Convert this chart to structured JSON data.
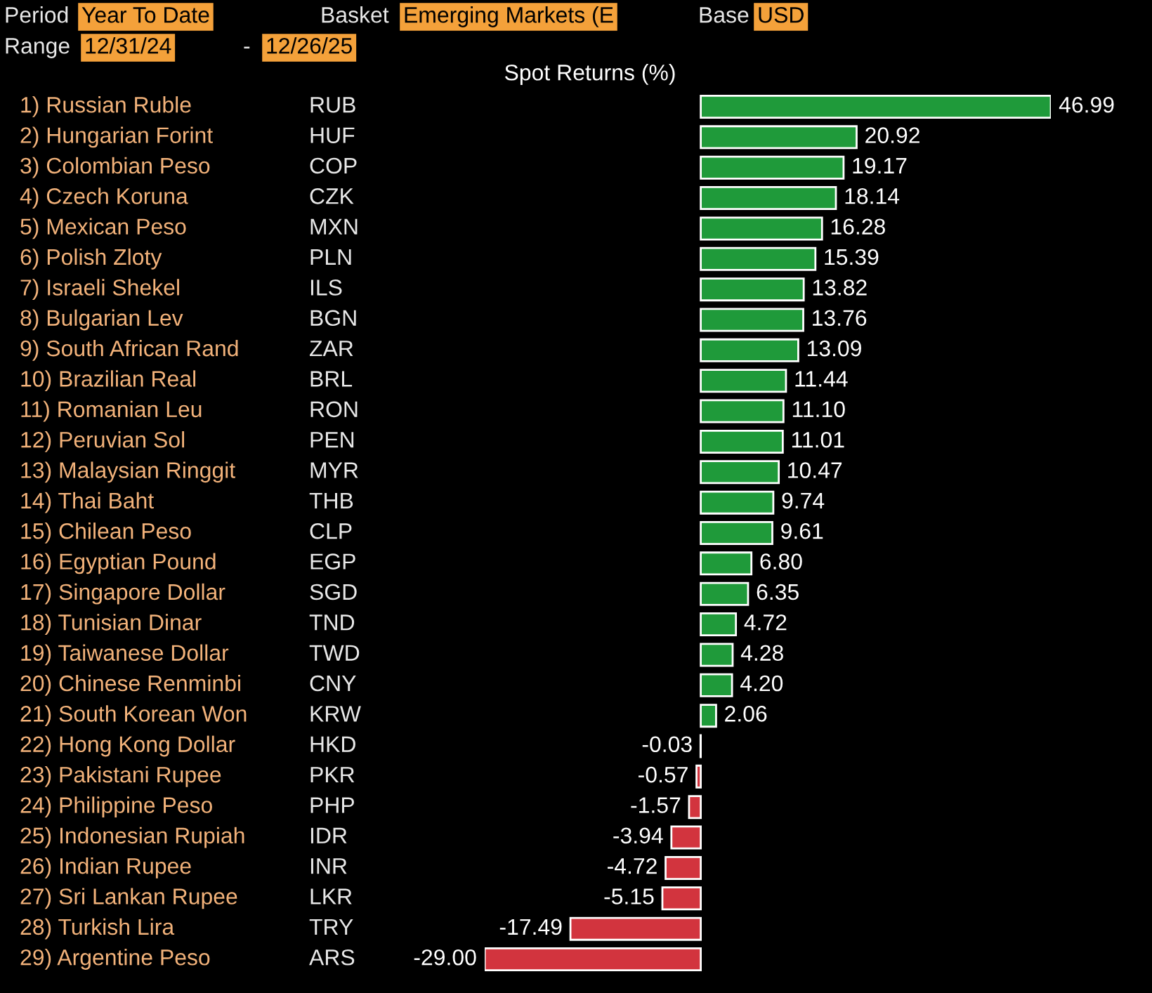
{
  "chart_data": {
    "type": "bar",
    "orientation": "horizontal",
    "title": "Spot Returns (%)",
    "annotations": [
      "Period",
      "Year To Date",
      "Basket",
      "Emerging Markets (E",
      "Base",
      "USD",
      "Range",
      "12/31/24",
      "-",
      "12/26/25"
    ],
    "categories": [
      "1) Russian Ruble",
      "2) Hungarian Forint",
      "3) Colombian Peso",
      "4) Czech Koruna",
      "5) Mexican Peso",
      "6) Polish Zloty",
      "7) Israeli Shekel",
      "8) Bulgarian Lev",
      "9) South African Rand",
      "10) Brazilian Real",
      "11) Romanian Leu",
      "12) Peruvian Sol",
      "13) Malaysian Ringgit",
      "14) Thai Baht",
      "15) Chilean Peso",
      "16) Egyptian Pound",
      "17) Singapore Dollar",
      "18) Tunisian Dinar",
      "19) Taiwanese Dollar",
      "20) Chinese Renminbi",
      "21) South Korean Won",
      "22) Hong Kong Dollar",
      "23) Pakistani Rupee",
      "24) Philippine Peso",
      "25) Indonesian Rupiah",
      "26) Indian Rupee",
      "27) Sri Lankan Rupee",
      "28) Turkish Lira",
      "29) Argentine Peso"
    ],
    "y2_categories": [
      "RUB",
      "HUF",
      "COP",
      "CZK",
      "MXN",
      "PLN",
      "ILS",
      "BGN",
      "ZAR",
      "BRL",
      "RON",
      "PEN",
      "MYR",
      "THB",
      "CLP",
      "EGP",
      "SGD",
      "TND",
      "TWD",
      "CNY",
      "KRW",
      "HKD",
      "PKR",
      "PHP",
      "IDR",
      "INR",
      "LKR",
      "TRY",
      "ARS"
    ],
    "values": [
      46.99,
      20.92,
      19.17,
      18.14,
      16.28,
      15.39,
      13.82,
      13.76,
      13.09,
      11.44,
      11.1,
      11.01,
      10.47,
      9.74,
      9.61,
      6.8,
      6.35,
      4.72,
      4.28,
      4.2,
      2.06,
      -0.03,
      -0.57,
      -1.57,
      -3.94,
      -4.72,
      -5.15,
      -17.49,
      -29.0
    ],
    "value_labels": [
      "46.99",
      "20.92",
      "19.17",
      "18.14",
      "16.28",
      "15.39",
      "13.82",
      "13.76",
      "13.09",
      "11.44",
      "11.10",
      "11.01",
      "10.47",
      "9.74",
      "9.61",
      "6.80",
      "6.35",
      "4.72",
      "4.28",
      "4.20",
      "2.06",
      "-0.03",
      "-0.57",
      "-1.57",
      "-3.94",
      "-4.72",
      "-5.15",
      "-17.49",
      "-29.00"
    ],
    "colors": [
      "#1f9a3a",
      "#1f9a3a",
      "#1f9a3a",
      "#1f9a3a",
      "#1f9a3a",
      "#1f9a3a",
      "#1f9a3a",
      "#1f9a3a",
      "#1f9a3a",
      "#1f9a3a",
      "#1f9a3a",
      "#1f9a3a",
      "#1f9a3a",
      "#1f9a3a",
      "#1f9a3a",
      "#1f9a3a",
      "#1f9a3a",
      "#1f9a3a",
      "#1f9a3a",
      "#1f9a3a",
      "#1f9a3a",
      "#d2343e",
      "#d2343e",
      "#d2343e",
      "#d2343e",
      "#d2343e",
      "#d2343e",
      "#d2343e",
      "#d2343e"
    ],
    "legend": false
  }
}
